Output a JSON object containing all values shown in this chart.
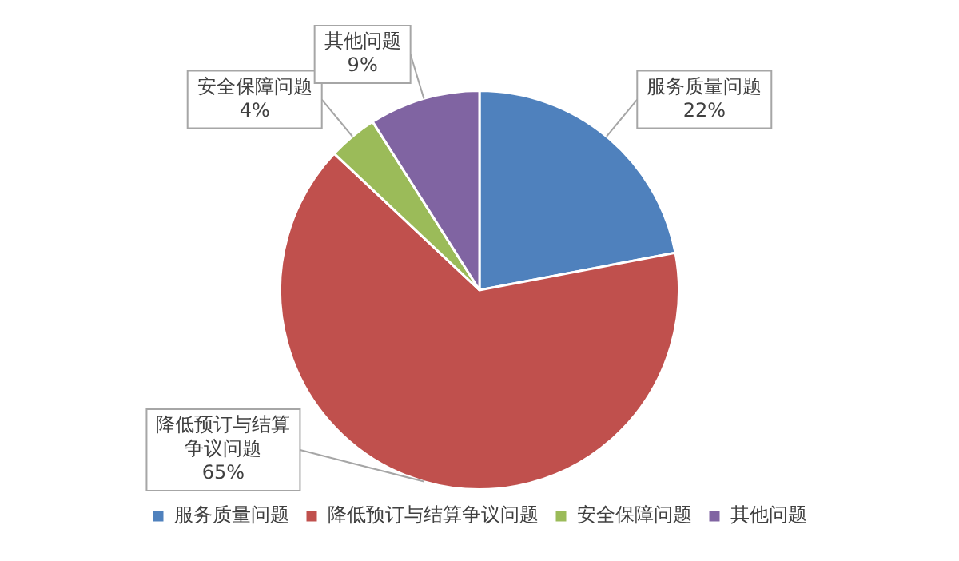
{
  "chart_data": {
    "type": "pie",
    "categories": [
      "服务质量问题",
      "降低预订与结算争议问题",
      "安全保障问题",
      "其他问题"
    ],
    "values": [
      22,
      65,
      4,
      9
    ],
    "value_labels": [
      "22%",
      "65%",
      "4%",
      "9%"
    ],
    "colors": [
      "#4f81bd",
      "#c0504d",
      "#9bbb59",
      "#8064a2"
    ],
    "legend": "bottom"
  }
}
